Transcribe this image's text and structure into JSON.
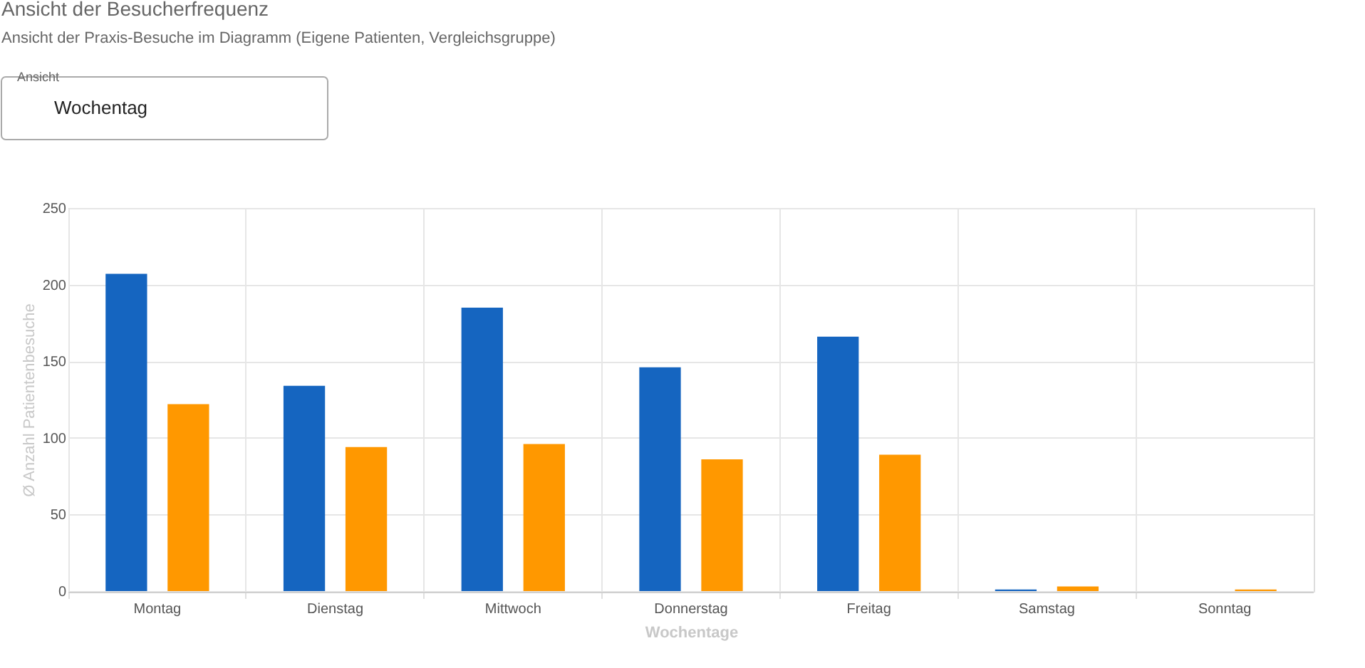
{
  "chart_data": {
    "type": "bar",
    "title": "Ansicht der Besucherfrequenz",
    "subtitle": "Ansicht der Praxis-Besuche im Diagramm (Eigene Patienten, Vergleichsgruppe)",
    "xlabel": "Wochentage",
    "ylabel": "Ø Anzahl Patientenbesuche",
    "annotations": [
      "Ansicht",
      "Wochentag"
    ],
    "categories": [
      "Montag",
      "Dienstag",
      "Mittwoch",
      "Donnerstag",
      "Freitag",
      "Samstag",
      "Sonntag"
    ],
    "series": [
      {
        "color": "#1565c0",
        "values": [
          207,
          134,
          185,
          146,
          166,
          1,
          0
        ]
      },
      {
        "color": "#ff9800",
        "values": [
          122,
          94,
          96,
          86,
          89,
          3,
          1
        ]
      }
    ],
    "ylim": [
      0,
      250
    ],
    "yticks": [
      0,
      50,
      100,
      150,
      200,
      250
    ],
    "grid": true
  }
}
